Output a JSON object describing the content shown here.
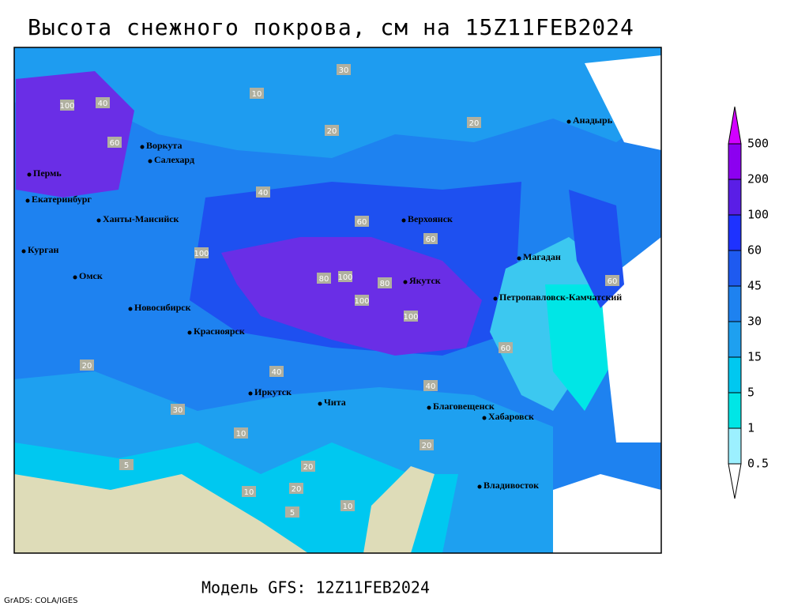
{
  "title": "Высота снежного покрова, см на 15Z11FEB2024",
  "map": {
    "cities": [
      "Воркута",
      "Салехард",
      "Пермь",
      "Екатеринбург",
      "Ханты-Мансийск",
      "Курган",
      "Омск",
      "Новосибирск",
      "Красноярск",
      "Иркутск",
      "Чита",
      "Благовещенск",
      "Хабаровск",
      "Владивосток",
      "Якутск",
      "Верхоянск",
      "Магадан",
      "Петропавловск-Камчатский",
      "Анадырь"
    ],
    "contour_labels": [
      30,
      20,
      10,
      20,
      100,
      60,
      100,
      40,
      60,
      80,
      100,
      100,
      80,
      100,
      60,
      40,
      30,
      20,
      40,
      20,
      10,
      10,
      20,
      20,
      5,
      5,
      10,
      40,
      60,
      60
    ]
  },
  "legend": {
    "levels": [
      0.5,
      1,
      5,
      15,
      30,
      45,
      60,
      100,
      200,
      500
    ],
    "colors": [
      "#ffffff",
      "#9cf0ff",
      "#00e6e6",
      "#00c8f0",
      "#1ea0f0",
      "#1e82f0",
      "#1e5af0",
      "#1e32ff",
      "#5a1ee6",
      "#8c00f0",
      "#d200ff"
    ]
  },
  "footer": {
    "model": "Модель GFS: 12Z11FEB2024",
    "credit": "GrADS: COLA/IGES"
  }
}
